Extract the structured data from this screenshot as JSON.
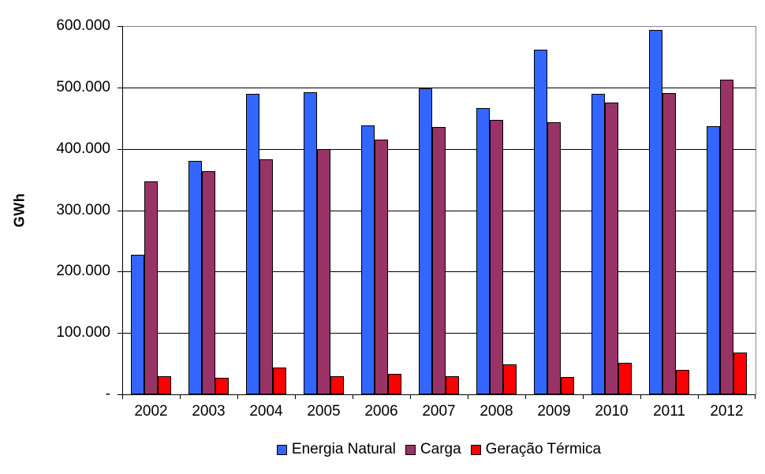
{
  "chart_data": {
    "type": "bar",
    "title": "",
    "ylabel": "GWh",
    "xlabel": "",
    "categories": [
      "2002",
      "2003",
      "2004",
      "2005",
      "2006",
      "2007",
      "2008",
      "2009",
      "2010",
      "2011",
      "2012"
    ],
    "series": [
      {
        "name": "Energia Natural",
        "color": "#3366FF",
        "values": [
          228000,
          380000,
          490000,
          492000,
          438000,
          498000,
          466000,
          562000,
          490000,
          594000,
          437000
        ]
      },
      {
        "name": "Carga",
        "color": "#993366",
        "values": [
          347000,
          364000,
          383000,
          400000,
          415000,
          435000,
          447000,
          443000,
          475000,
          491000,
          513000
        ]
      },
      {
        "name": "Geração Térmica",
        "color": "#FF0000",
        "values": [
          30000,
          27000,
          44000,
          30000,
          33000,
          29000,
          49000,
          28000,
          51000,
          40000,
          68000
        ]
      }
    ],
    "ylim": [
      0,
      600000
    ],
    "ytick_step": 100000,
    "ytick_labels": [
      "600.000",
      "500.000",
      "400.000",
      "300.000",
      "200.000",
      "100.000",
      "-"
    ],
    "grid": true,
    "legend_position": "bottom",
    "colors": {
      "axis": "#000000",
      "gridline": "#000000",
      "plot_border": "#858585",
      "text": "#000000",
      "background": "#FFFFFF"
    }
  }
}
